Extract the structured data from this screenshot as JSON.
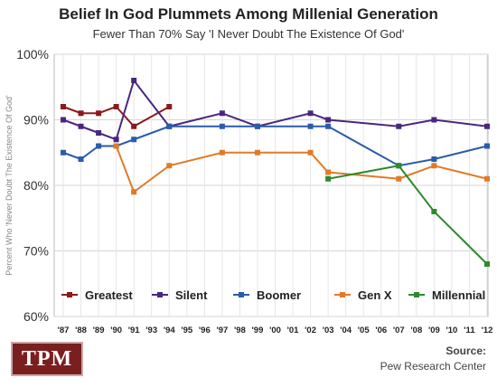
{
  "chart_data": {
    "type": "line",
    "title": "Belief In God Plummets Among Millenial Generation",
    "subtitle": "Fewer Than 70% Say 'I Never Doubt The Existence Of God'",
    "ylabel": "Percent Who 'Never Doubt The Existence Of God'",
    "xlabel": "",
    "ylim": [
      60,
      100
    ],
    "yticks": [
      "60%",
      "70%",
      "80%",
      "90%",
      "100%"
    ],
    "categories": [
      "'87",
      "'88",
      "'89",
      "'90",
      "'91",
      "'93",
      "'94",
      "'95",
      "'96",
      "'97",
      "'98",
      "'99",
      "'00",
      "'01",
      "'02",
      "'03",
      "'04",
      "'05",
      "'06",
      "'07",
      "'08",
      "'09",
      "'10",
      "'11",
      "'12"
    ],
    "grid": true,
    "legend_position": "bottom",
    "series": [
      {
        "name": "Greatest",
        "color": "#8b1a1a",
        "points": [
          [
            "'87",
            92
          ],
          [
            "'88",
            91
          ],
          [
            "'89",
            91
          ],
          [
            "'90",
            92
          ],
          [
            "'91",
            89
          ],
          [
            "'94",
            92
          ]
        ]
      },
      {
        "name": "Silent",
        "color": "#4b2680",
        "points": [
          [
            "'87",
            90
          ],
          [
            "'88",
            89
          ],
          [
            "'89",
            88
          ],
          [
            "'90",
            87
          ],
          [
            "'91",
            96
          ],
          [
            "'94",
            89
          ],
          [
            "'97",
            91
          ],
          [
            "'99",
            89
          ],
          [
            "'02",
            91
          ],
          [
            "'03",
            90
          ],
          [
            "'07",
            89
          ],
          [
            "'09",
            90
          ],
          [
            "'12",
            89
          ]
        ]
      },
      {
        "name": "Boomer",
        "color": "#2a5caa",
        "points": [
          [
            "'87",
            85
          ],
          [
            "'88",
            84
          ],
          [
            "'89",
            86
          ],
          [
            "'90",
            86
          ],
          [
            "'91",
            87
          ],
          [
            "'94",
            89
          ],
          [
            "'97",
            89
          ],
          [
            "'99",
            89
          ],
          [
            "'02",
            89
          ],
          [
            "'03",
            89
          ],
          [
            "'07",
            83
          ],
          [
            "'09",
            84
          ],
          [
            "'12",
            86
          ]
        ]
      },
      {
        "name": "Gen X",
        "color": "#e07b28",
        "points": [
          [
            "'90",
            86
          ],
          [
            "'91",
            79
          ],
          [
            "'94",
            83
          ],
          [
            "'97",
            85
          ],
          [
            "'99",
            85
          ],
          [
            "'02",
            85
          ],
          [
            "'03",
            82
          ],
          [
            "'07",
            81
          ],
          [
            "'09",
            83
          ],
          [
            "'12",
            81
          ]
        ]
      },
      {
        "name": "Millennial",
        "color": "#2d8a2d",
        "points": [
          [
            "'03",
            81
          ],
          [
            "'07",
            83
          ],
          [
            "'09",
            76
          ],
          [
            "'12",
            68
          ]
        ]
      }
    ]
  },
  "branding": {
    "logo_text": "TPM",
    "source_label": "Source:",
    "source_text": "Pew Research Center"
  }
}
